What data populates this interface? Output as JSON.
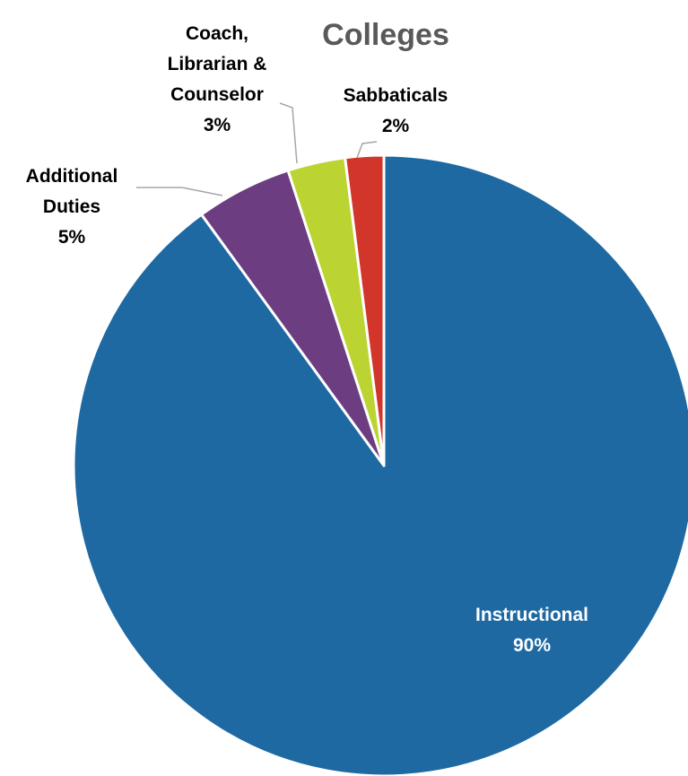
{
  "chart_data": {
    "type": "pie",
    "title": "Colleges",
    "start_angle_deg": 0,
    "direction": "clockwise",
    "slices": [
      {
        "label": "Instructional",
        "value": 90,
        "display": "90%",
        "color": "#1f69a3",
        "label_color": "#ffffff",
        "label_inside": true
      },
      {
        "label": "Additional Duties",
        "value": 5,
        "display": "5%",
        "color": "#6c3d80",
        "label_color": "#000000",
        "label_inside": false
      },
      {
        "label": "Coach, Librarian & Counselor",
        "value": 3,
        "display": "3%",
        "color": "#bbd432",
        "label_color": "#000000",
        "label_inside": false
      },
      {
        "label": "Sabbaticals",
        "value": 2,
        "display": "2%",
        "color": "#d2352a",
        "label_color": "#000000",
        "label_inside": false
      }
    ],
    "legend": "none",
    "slice_border_color": "#ffffff"
  }
}
